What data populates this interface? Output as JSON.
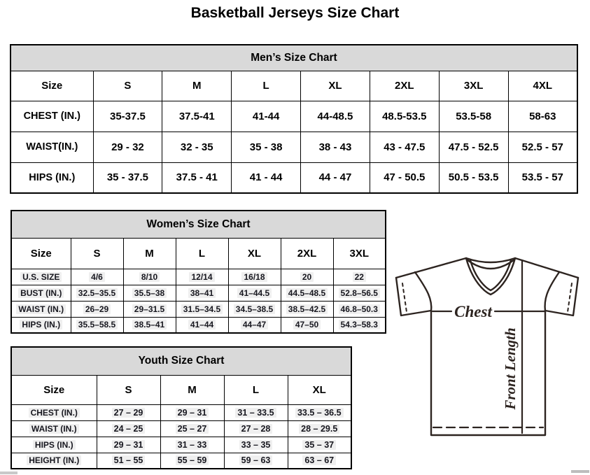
{
  "page": {
    "title": "Basketball Jerseys Size Chart"
  },
  "mens": {
    "title": "Men’s Size Chart",
    "columns": [
      "Size",
      "S",
      "M",
      "L",
      "XL",
      "2XL",
      "3XL",
      "4XL"
    ],
    "rows": [
      {
        "label": "CHEST (IN.)",
        "values": [
          "35-37.5",
          "37.5-41",
          "41-44",
          "44-48.5",
          "48.5-53.5",
          "53.5-58",
          "58-63"
        ]
      },
      {
        "label": "WAIST(IN.)",
        "values": [
          "29 - 32",
          "32 - 35",
          "35 - 38",
          "38 - 43",
          "43 - 47.5",
          "47.5 - 52.5",
          "52.5 - 57"
        ]
      },
      {
        "label": "HIPS (IN.)",
        "values": [
          "35 - 37.5",
          "37.5 - 41",
          "41 - 44",
          "44 - 47",
          "47 - 50.5",
          "50.5 - 53.5",
          "53.5 - 57"
        ]
      }
    ]
  },
  "womens": {
    "title": "Women’s Size Chart",
    "columns": [
      "Size",
      "S",
      "M",
      "L",
      "XL",
      "2XL",
      "3XL"
    ],
    "rows": [
      {
        "label": "U.S. SIZE",
        "values": [
          "4/6",
          "8/10",
          "12/14",
          "16/18",
          "20",
          "22"
        ]
      },
      {
        "label": "BUST (IN.)",
        "values": [
          "32.5–35.5",
          "35.5–38",
          "38–41",
          "41–44.5",
          "44.5–48.5",
          "52.8–56.5"
        ]
      },
      {
        "label": "WAIST (IN.)",
        "values": [
          "26–29",
          "29–31.5",
          "31.5–34.5",
          "34.5–38.5",
          "38.5–42.5",
          "46.8–50.3"
        ]
      },
      {
        "label": "HIPS (IN.)",
        "values": [
          "35.5–58.5",
          "38.5–41",
          "41–44",
          "44–47",
          "47–50",
          "54.3–58.3"
        ]
      }
    ]
  },
  "youth": {
    "title": "Youth Size Chart",
    "columns": [
      "Size",
      "S",
      "M",
      "L",
      "XL"
    ],
    "rows": [
      {
        "label": "CHEST (IN.)",
        "values": [
          "27 – 29",
          "29 – 31",
          "31 – 33.5",
          "33.5 – 36.5"
        ]
      },
      {
        "label": "WAIST (IN.)",
        "values": [
          "24 – 25",
          "25 – 27",
          "27 – 28",
          "28 – 29.5"
        ]
      },
      {
        "label": "HIPS (IN.)",
        "values": [
          "29 – 31",
          "31 – 33",
          "33 – 35",
          "35 – 37"
        ]
      },
      {
        "label": "HEIGHT (IN.)",
        "values": [
          "51 – 55",
          "55 – 59",
          "59 – 63",
          "63 – 67"
        ]
      }
    ]
  },
  "diagram": {
    "chest_label": "Chest",
    "front_length_label": "Front Length"
  },
  "colors": {
    "band_background": "#d9d9d9",
    "table_border": "#000000",
    "secondary_text": "#17171f",
    "cell_highlight": "#efefef",
    "jersey_line": "#2d2420",
    "scrollbar_fragment": "#c9c9c9"
  }
}
